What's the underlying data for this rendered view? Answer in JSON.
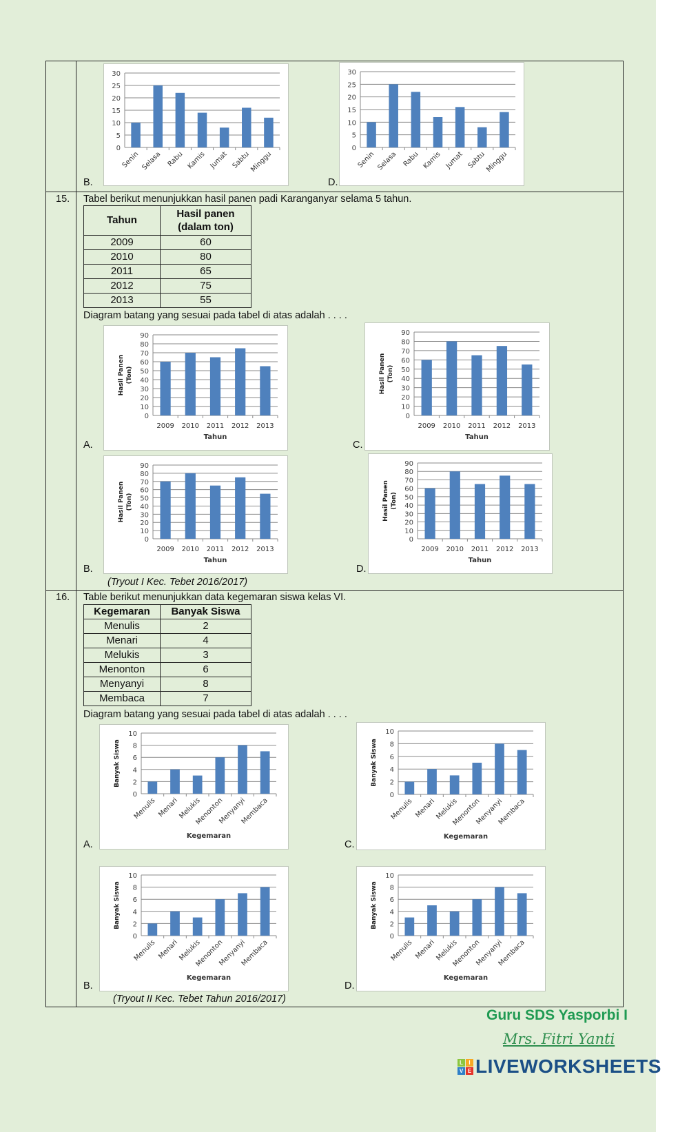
{
  "q14": {
    "option_b": "B.",
    "option_d": "D."
  },
  "q15": {
    "number": "15.",
    "question": "Tabel berikut menunjukkan hasil panen padi Karanganyar selama 5 tahun.",
    "table": {
      "headers": [
        "Tahun",
        "Hasil panen (dalam ton)"
      ],
      "rows": [
        [
          "2009",
          "60"
        ],
        [
          "2010",
          "80"
        ],
        [
          "2011",
          "65"
        ],
        [
          "2012",
          "75"
        ],
        [
          "2013",
          "55"
        ]
      ]
    },
    "prompt": "Diagram batang yang sesuai pada tabel di atas adalah . . . .",
    "options": {
      "a": "A.",
      "b": "B.",
      "c": "C.",
      "d": "D."
    },
    "source": "(Tryout I Kec. Tebet 2016/2017)"
  },
  "q16": {
    "number": "16.",
    "question": "Table berikut menunjukkan data kegemaran siswa kelas VI.",
    "table": {
      "headers": [
        "Kegemaran",
        "Banyak Siswa"
      ],
      "rows": [
        [
          "Menulis",
          "2"
        ],
        [
          "Menari",
          "4"
        ],
        [
          "Melukis",
          "3"
        ],
        [
          "Menonton",
          "6"
        ],
        [
          "Menyanyi",
          "8"
        ],
        [
          "Membaca",
          "7"
        ]
      ]
    },
    "prompt": "Diagram batang yang sesuai pada tabel di atas adalah . . . .",
    "options": {
      "a": "A.",
      "b": "B.",
      "c": "C.",
      "d": "D."
    },
    "source": "(Tryout II Kec. Tebet Tahun 2016/2017)"
  },
  "footer": {
    "school": "Guru SDS Yasporbi I",
    "teacher": "Mrs. Fitri Yanti",
    "brand": "LIVEWORKSHEETS",
    "brand_logo": [
      "L",
      "I",
      "V",
      "E"
    ]
  },
  "colors": {
    "bar": "#4f81bd",
    "background": "#e2eed9",
    "footer_green": "#1f9a52",
    "brand_blue": "#1b4f86"
  },
  "chart_data": [
    {
      "id": "q14-b",
      "type": "bar",
      "categories": [
        "Senin",
        "Selasa",
        "Rabu",
        "Kamis",
        "Jumat",
        "Sabtu",
        "Minggu"
      ],
      "values": [
        10,
        25,
        22,
        14,
        8,
        16,
        12
      ],
      "ylim": [
        0,
        30
      ],
      "yticks": [
        0,
        5,
        10,
        15,
        20,
        25,
        30
      ],
      "xlabel": "",
      "ylabel": "",
      "grid": true
    },
    {
      "id": "q14-d",
      "type": "bar",
      "categories": [
        "Senin",
        "Selasa",
        "Rabu",
        "Kamis",
        "Jumat",
        "Sabtu",
        "Minggu"
      ],
      "values": [
        10,
        25,
        22,
        12,
        16,
        8,
        14
      ],
      "ylim": [
        0,
        30
      ],
      "yticks": [
        0,
        5,
        10,
        15,
        20,
        25,
        30
      ],
      "xlabel": "",
      "ylabel": "",
      "grid": true
    },
    {
      "id": "q15-a",
      "type": "bar",
      "categories": [
        "2009",
        "2010",
        "2011",
        "2012",
        "2013"
      ],
      "values": [
        60,
        70,
        65,
        75,
        55
      ],
      "ylim": [
        0,
        90
      ],
      "yticks": [
        0,
        10,
        20,
        30,
        40,
        50,
        60,
        70,
        80,
        90
      ],
      "xlabel": "Tahun",
      "ylabel": [
        "Hasil Panen",
        "(Ton)"
      ],
      "grid": true
    },
    {
      "id": "q15-c",
      "type": "bar",
      "categories": [
        "2009",
        "2010",
        "2011",
        "2012",
        "2013"
      ],
      "values": [
        60,
        80,
        65,
        75,
        55
      ],
      "ylim": [
        0,
        90
      ],
      "yticks": [
        0,
        10,
        20,
        30,
        40,
        50,
        60,
        70,
        80,
        90
      ],
      "xlabel": "Tahun",
      "ylabel": [
        "Hasil Panen",
        "(Ton)"
      ],
      "grid": true
    },
    {
      "id": "q15-b",
      "type": "bar",
      "categories": [
        "2009",
        "2010",
        "2011",
        "2012",
        "2013"
      ],
      "values": [
        70,
        80,
        65,
        75,
        55
      ],
      "ylim": [
        0,
        90
      ],
      "yticks": [
        0,
        10,
        20,
        30,
        40,
        50,
        60,
        70,
        80,
        90
      ],
      "xlabel": "Tahun",
      "ylabel": [
        "Hasil Panen",
        "(Ton)"
      ],
      "grid": true
    },
    {
      "id": "q15-d",
      "type": "bar",
      "categories": [
        "2009",
        "2010",
        "2011",
        "2012",
        "2013"
      ],
      "values": [
        60,
        80,
        65,
        75,
        65
      ],
      "ylim": [
        0,
        90
      ],
      "yticks": [
        0,
        10,
        20,
        30,
        40,
        50,
        60,
        70,
        80,
        90
      ],
      "xlabel": "Tahun",
      "ylabel": [
        "Hasil Panen",
        "(Ton)"
      ],
      "grid": true
    },
    {
      "id": "q16-a",
      "type": "bar",
      "categories": [
        "Menulis",
        "Menari",
        "Melukis",
        "Menonton",
        "Menyanyi",
        "Membaca"
      ],
      "values": [
        2,
        4,
        3,
        6,
        8,
        7
      ],
      "ylim": [
        0,
        10
      ],
      "yticks": [
        0,
        2,
        4,
        6,
        8,
        10
      ],
      "xlabel": "Kegemaran",
      "ylabel": [
        "Banyak Siswa"
      ],
      "grid": true
    },
    {
      "id": "q16-c",
      "type": "bar",
      "categories": [
        "Menulis",
        "Menari",
        "Melukis",
        "Menonton",
        "Menyanyi",
        "Membaca"
      ],
      "values": [
        2,
        4,
        3,
        5,
        8,
        7
      ],
      "ylim": [
        0,
        10
      ],
      "yticks": [
        0,
        2,
        4,
        6,
        8,
        10
      ],
      "xlabel": "Kegemaran",
      "ylabel": [
        "Banyak Siswa"
      ],
      "grid": true
    },
    {
      "id": "q16-b",
      "type": "bar",
      "categories": [
        "Menulis",
        "Menari",
        "Melukis",
        "Menonton",
        "Menyanyi",
        "Membaca"
      ],
      "values": [
        2,
        4,
        3,
        6,
        7,
        8
      ],
      "ylim": [
        0,
        10
      ],
      "yticks": [
        0,
        2,
        4,
        6,
        8,
        10
      ],
      "xlabel": "Kegemaran",
      "ylabel": [
        "Banyak Siswa"
      ],
      "grid": true
    },
    {
      "id": "q16-d",
      "type": "bar",
      "categories": [
        "Menulis",
        "Menari",
        "Melukis",
        "Menonton",
        "Menyanyi",
        "Membaca"
      ],
      "values": [
        3,
        5,
        4,
        6,
        8,
        7
      ],
      "ylim": [
        0,
        10
      ],
      "yticks": [
        0,
        2,
        4,
        6,
        8,
        10
      ],
      "xlabel": "Kegemaran",
      "ylabel": [
        "Banyak Siswa"
      ],
      "grid": true
    }
  ]
}
